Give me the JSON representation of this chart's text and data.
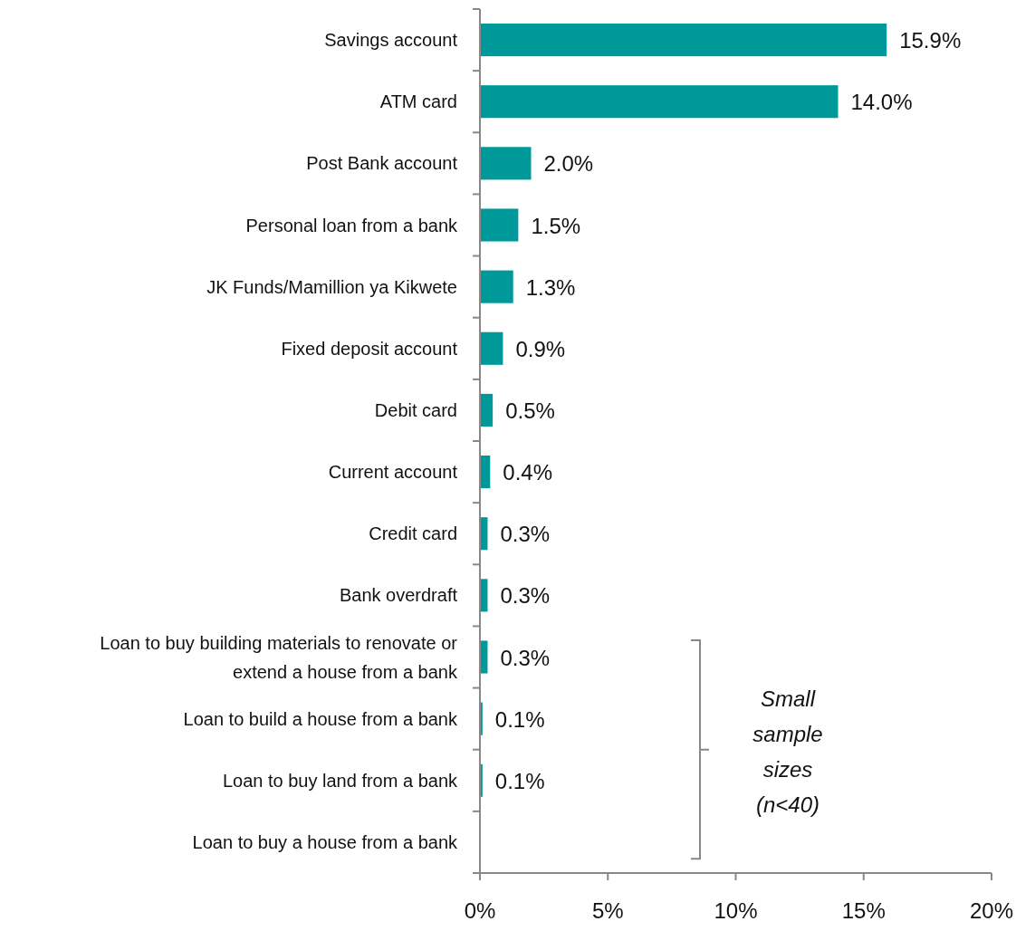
{
  "chart_data": {
    "type": "bar",
    "orientation": "horizontal",
    "categories": [
      "Savings account",
      "ATM card",
      "Post Bank account",
      "Personal loan from a bank",
      "JK Funds/Mamillion ya Kikwete",
      "Fixed deposit account",
      "Debit card",
      "Current account",
      "Credit card",
      "Bank overdraft",
      "Loan to buy building materials to renovate or extend a house from a bank",
      "Loan to build a house from a bank",
      "Loan to buy land from a bank",
      "Loan to buy a house from a bank"
    ],
    "values": [
      15.9,
      14.0,
      2.0,
      1.5,
      1.3,
      0.9,
      0.5,
      0.4,
      0.3,
      0.3,
      0.3,
      0.1,
      0.1,
      null
    ],
    "value_labels": [
      "15.9%",
      "14.0%",
      "2.0%",
      "1.5%",
      "1.3%",
      "0.9%",
      "0.5%",
      "0.4%",
      "0.3%",
      "0.3%",
      "0.3%",
      "0.1%",
      "0.1%",
      null
    ],
    "color": "#009999",
    "xlim": [
      0,
      20
    ],
    "xticks": [
      {
        "value": 0,
        "label": "0%"
      },
      {
        "value": 5,
        "label": "5%"
      },
      {
        "value": 10,
        "label": "10%"
      },
      {
        "value": 15,
        "label": "15%"
      },
      {
        "value": 20,
        "label": "20%"
      }
    ],
    "grid": false,
    "annotations": [
      "Small sample sizes (n<40)"
    ]
  }
}
